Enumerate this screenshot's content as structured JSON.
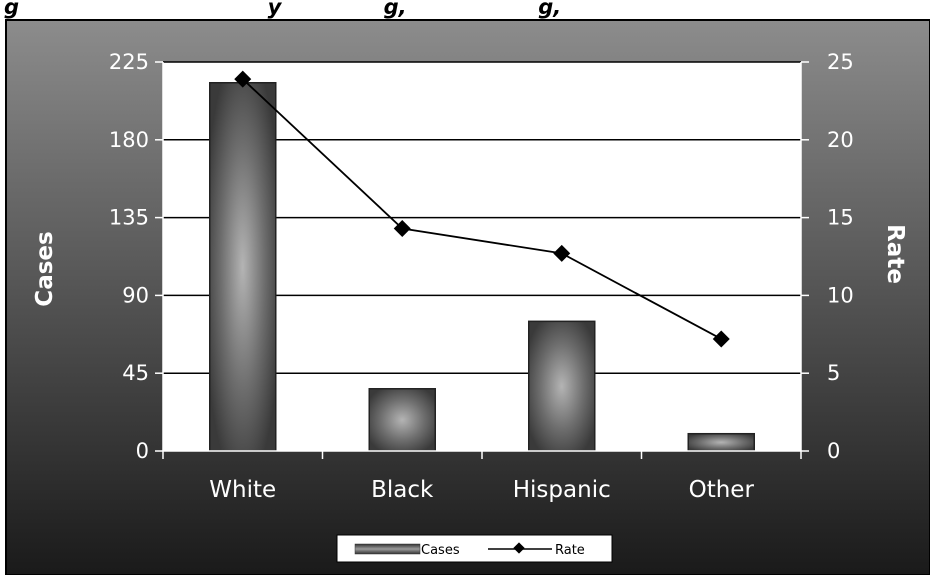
{
  "header": {
    "title_fragment": "g                                  y              g,                  g,"
  },
  "chart_data": {
    "type": "bar",
    "categories": [
      "White",
      "Black",
      "Hispanic",
      "Other"
    ],
    "series": [
      {
        "name": "Cases",
        "type": "bar",
        "axis": "left",
        "values": [
          213,
          36,
          75,
          10
        ]
      },
      {
        "name": "Rate",
        "type": "line",
        "axis": "right",
        "values": [
          23.9,
          14.3,
          12.7,
          7.2
        ]
      }
    ],
    "ylabel_left": "Cases",
    "ylabel_right": "Rate",
    "ylim_left": [
      0,
      225
    ],
    "ylim_right": [
      0,
      25
    ],
    "yticks_left": [
      0,
      45,
      90,
      135,
      180,
      225
    ],
    "yticks_right": [
      0,
      5,
      10,
      15,
      20,
      25
    ],
    "grid": true,
    "legend": {
      "position": "bottom",
      "entries": [
        "Cases",
        "Rate"
      ]
    },
    "colors": {
      "outer_bg_top": "#8a8a8a",
      "outer_bg_bottom": "#1c1c1c",
      "plot_bg": "#ffffff",
      "bar_edge": "#333333",
      "bar_center": "#b0b0b0",
      "line": "#000000",
      "text": "#ffffff"
    }
  }
}
